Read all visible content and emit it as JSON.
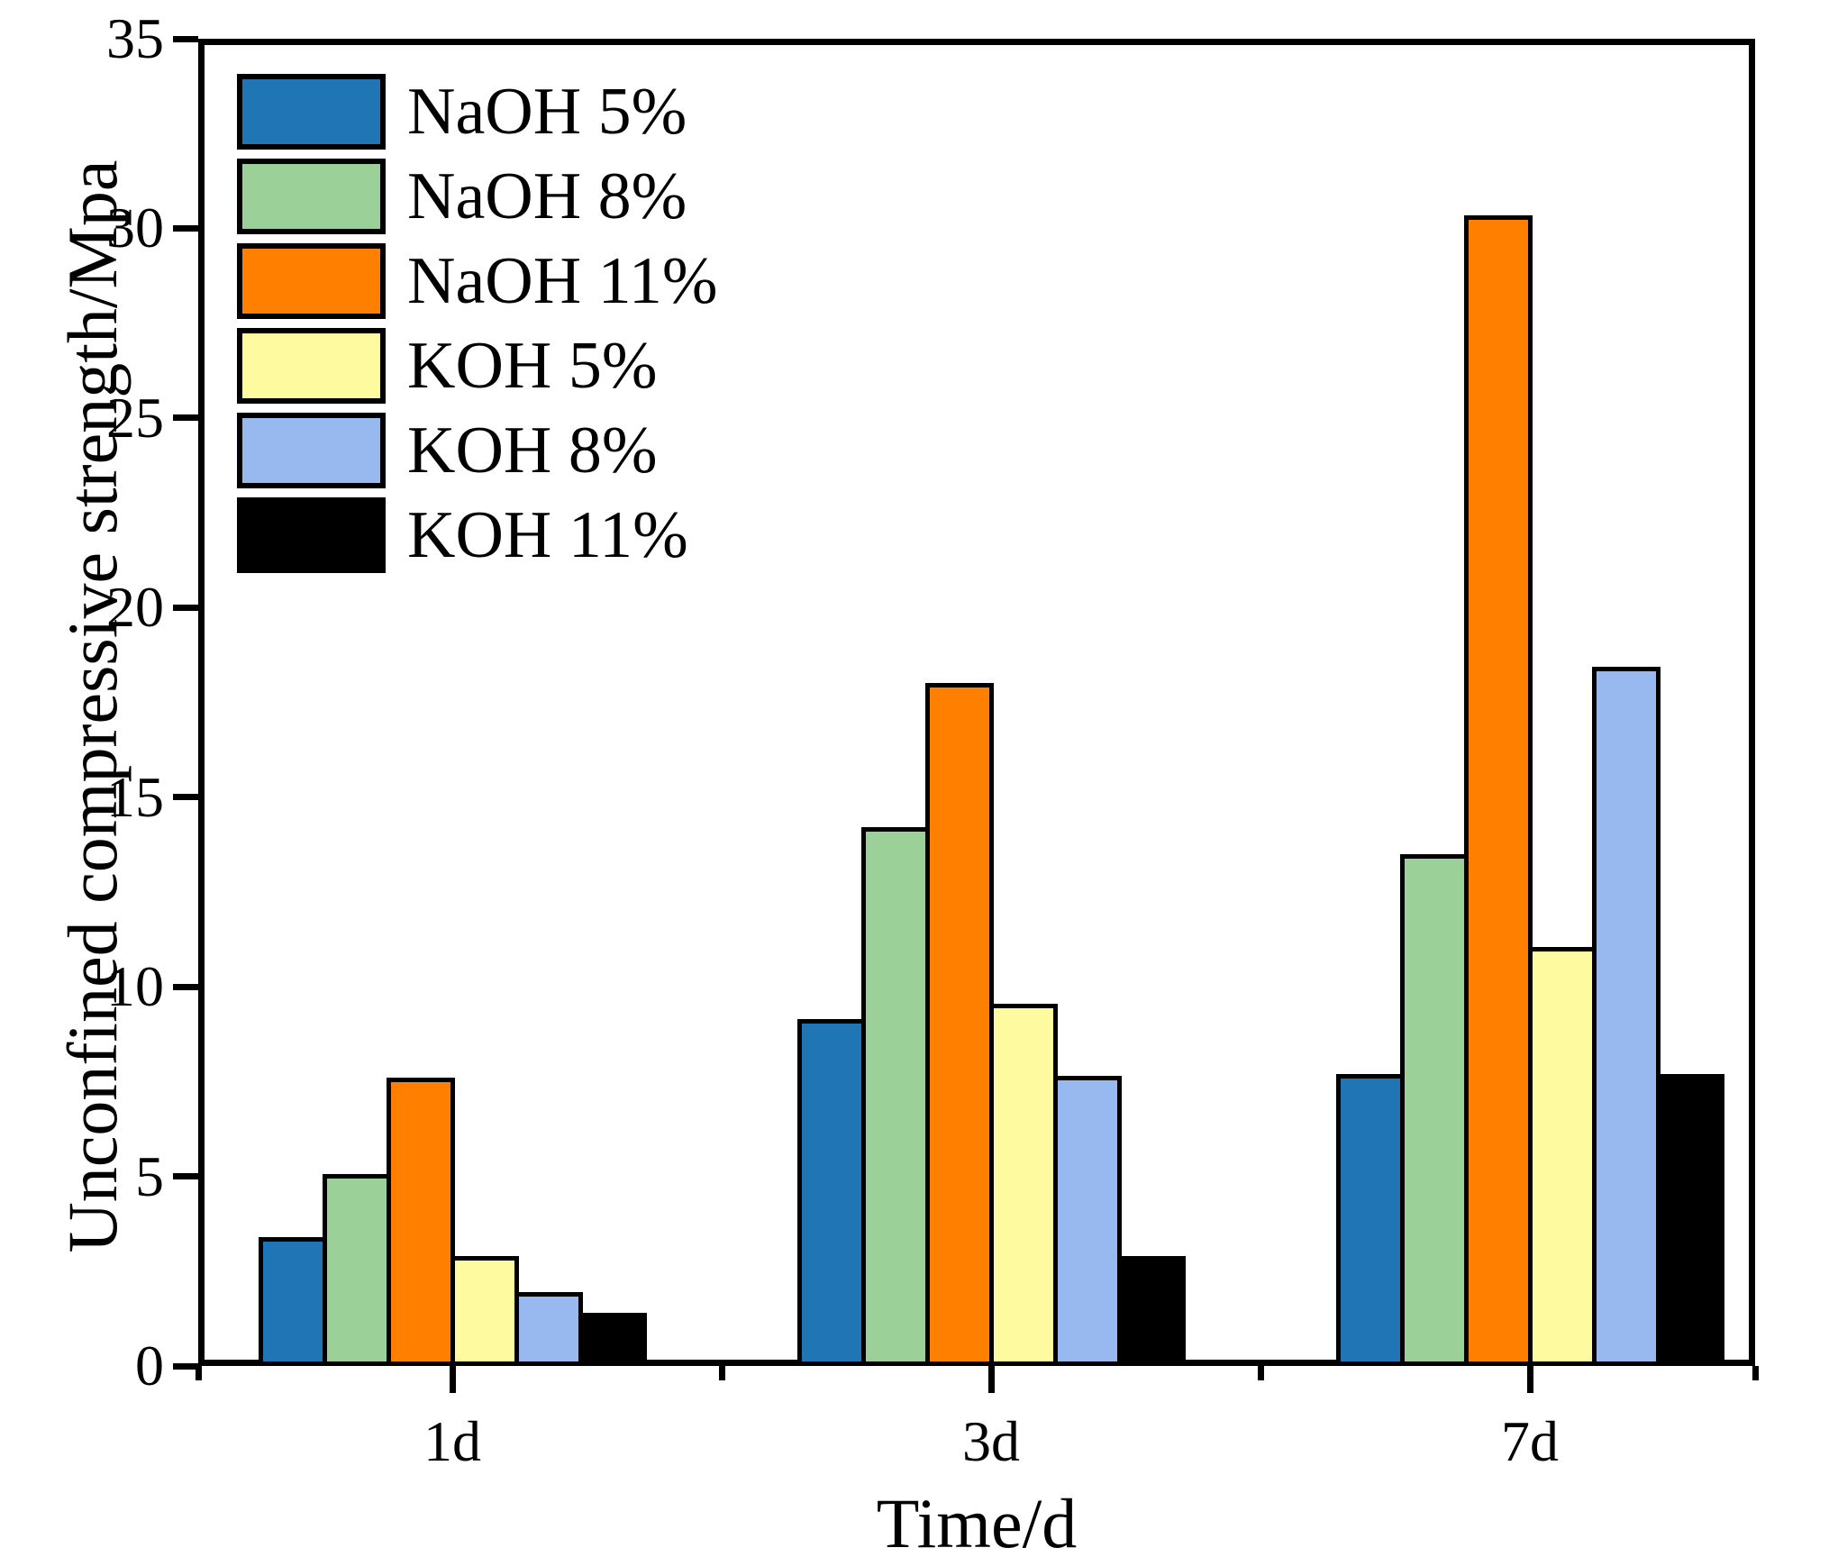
{
  "chart_data": {
    "type": "bar",
    "title": "",
    "xlabel": "Time/d",
    "ylabel": "Unconfined compressive strength/Mpa",
    "categories": [
      "1d",
      "3d",
      "7d"
    ],
    "series": [
      {
        "name": "NaOH 5%",
        "color": "#2076B4",
        "values": [
          3.4,
          9.15,
          7.7
        ]
      },
      {
        "name": "NaOH 8%",
        "color": "#9BD198",
        "values": [
          5.05,
          14.2,
          13.5
        ]
      },
      {
        "name": "NaOH 11%",
        "color": "#FF8000",
        "values": [
          7.6,
          18.0,
          30.35
        ]
      },
      {
        "name": "KOH 5%",
        "color": "#FDFA9F",
        "values": [
          2.9,
          9.55,
          11.05
        ]
      },
      {
        "name": "KOH 8%",
        "color": "#98B9EF",
        "values": [
          1.95,
          7.65,
          18.45
        ]
      },
      {
        "name": "KOH 11%",
        "color": "#000000",
        "values": [
          1.4,
          2.9,
          7.7
        ]
      }
    ],
    "ylim": [
      0,
      35
    ],
    "yticks": [
      0,
      5,
      10,
      15,
      20,
      25,
      30,
      35
    ],
    "legend_position": "upper-left",
    "grid": false,
    "axis_color": "#000000",
    "background": "#FFFFFF"
  }
}
